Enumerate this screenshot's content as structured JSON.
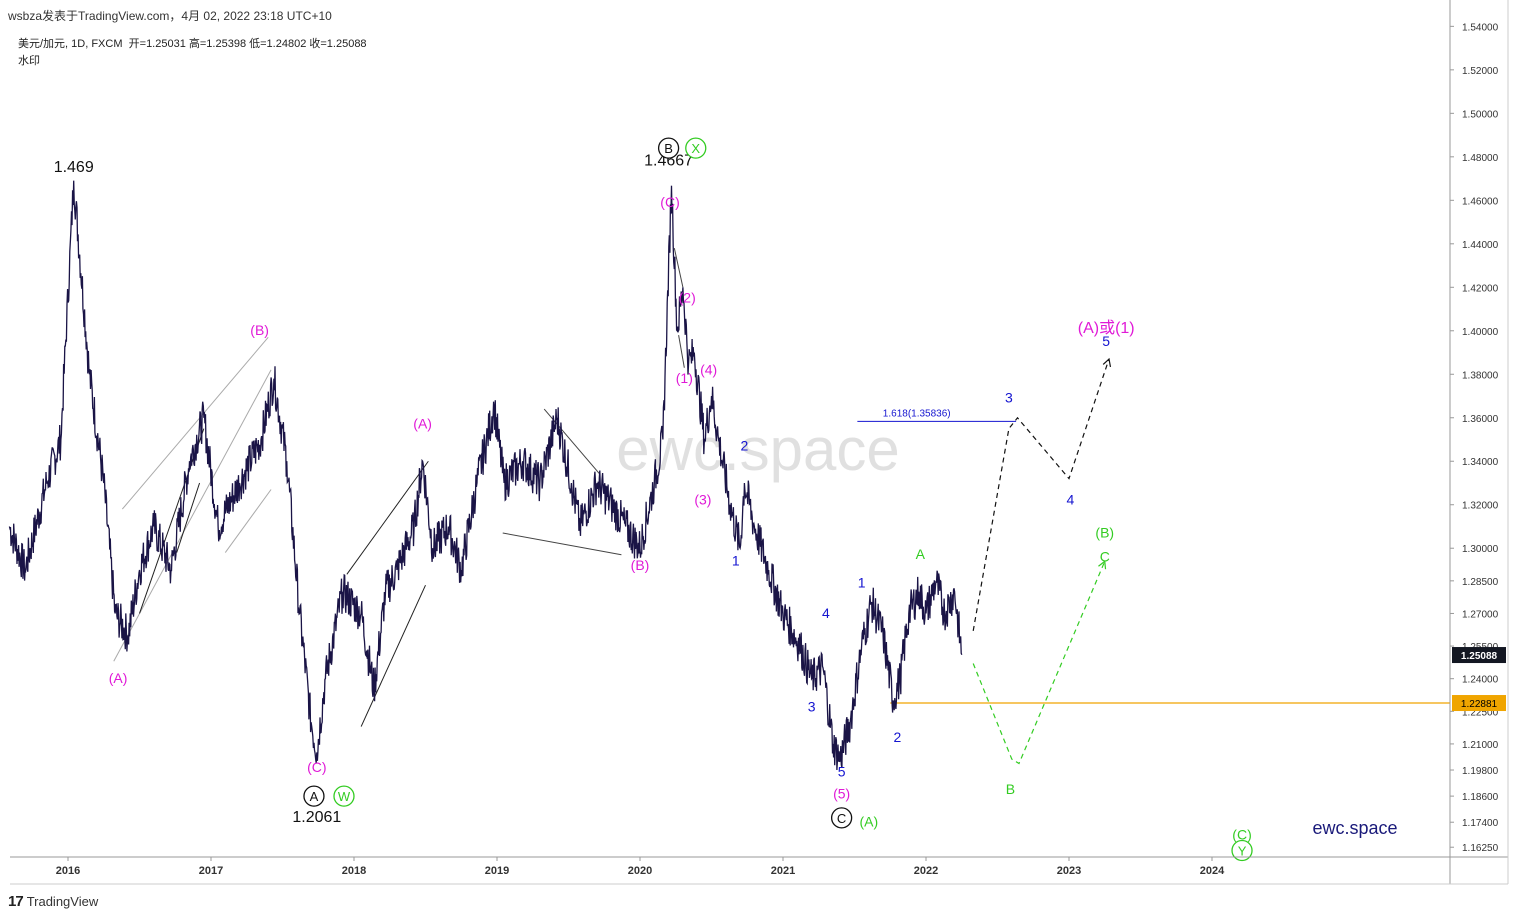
{
  "header": {
    "title": "wsbza发表于TradingView.com，4月 02, 2022 23:18 UTC+10"
  },
  "legend": {
    "symbol": "美元/加元, 1D, FXCM",
    "ohlc": "开=1.25031  高=1.25398  低=1.24802  收=1.25088",
    "line2": "水印"
  },
  "footer": {
    "brand": "TradingView"
  },
  "watermark": "ewc.space",
  "brand_label": "ewc.space",
  "colors": {
    "price": "#1a1446",
    "magenta": "#e01ad7",
    "blue": "#1515d0",
    "green": "#33cc22",
    "black": "#111111",
    "support": "#f0a500",
    "lastprice_bg": "#131722"
  },
  "chart_data": {
    "type": "line",
    "x_ticks": [
      "2016",
      "2017",
      "2018",
      "2019",
      "2020",
      "2021",
      "2022",
      "2023",
      "2024"
    ],
    "y_ticks": [
      "1.54000",
      "1.52000",
      "1.50000",
      "1.48000",
      "1.46000",
      "1.44000",
      "1.42000",
      "1.40000",
      "1.38000",
      "1.36000",
      "1.34000",
      "1.32000",
      "1.30000",
      "1.28500",
      "1.27000",
      "1.25500",
      "1.24000",
      "1.22500",
      "1.21000",
      "1.19800",
      "1.18600",
      "1.17400",
      "1.16250"
    ],
    "ylim": [
      1.158,
      1.542
    ],
    "last_price": "1.25088",
    "support_level": "1.22881",
    "price_anchors": [
      [
        2015.59,
        1.31
      ],
      [
        2015.7,
        1.29
      ],
      [
        2015.85,
        1.33
      ],
      [
        2015.95,
        1.35
      ],
      [
        2016.04,
        1.469
      ],
      [
        2016.15,
        1.38
      ],
      [
        2016.25,
        1.33
      ],
      [
        2016.33,
        1.27
      ],
      [
        2016.42,
        1.26
      ],
      [
        2016.5,
        1.29
      ],
      [
        2016.6,
        1.31
      ],
      [
        2016.72,
        1.29
      ],
      [
        2016.85,
        1.34
      ],
      [
        2016.95,
        1.36
      ],
      [
        2017.05,
        1.31
      ],
      [
        2017.2,
        1.33
      ],
      [
        2017.35,
        1.35
      ],
      [
        2017.44,
        1.378
      ],
      [
        2017.53,
        1.34
      ],
      [
        2017.62,
        1.27
      ],
      [
        2017.7,
        1.22
      ],
      [
        2017.74,
        1.2061
      ],
      [
        2017.8,
        1.24
      ],
      [
        2017.92,
        1.28
      ],
      [
        2018.05,
        1.27
      ],
      [
        2018.14,
        1.235
      ],
      [
        2018.22,
        1.28
      ],
      [
        2018.3,
        1.29
      ],
      [
        2018.42,
        1.31
      ],
      [
        2018.48,
        1.34
      ],
      [
        2018.55,
        1.3
      ],
      [
        2018.66,
        1.31
      ],
      [
        2018.75,
        1.29
      ],
      [
        2018.86,
        1.33
      ],
      [
        2018.98,
        1.365
      ],
      [
        2019.05,
        1.33
      ],
      [
        2019.18,
        1.34
      ],
      [
        2019.3,
        1.33
      ],
      [
        2019.42,
        1.36
      ],
      [
        2019.52,
        1.33
      ],
      [
        2019.58,
        1.31
      ],
      [
        2019.7,
        1.33
      ],
      [
        2019.8,
        1.32
      ],
      [
        2019.9,
        1.31
      ],
      [
        2020.0,
        1.3
      ],
      [
        2020.1,
        1.33
      ],
      [
        2020.16,
        1.35
      ],
      [
        2020.22,
        1.4667
      ],
      [
        2020.26,
        1.4
      ],
      [
        2020.3,
        1.42
      ],
      [
        2020.34,
        1.385
      ],
      [
        2020.38,
        1.39
      ],
      [
        2020.45,
        1.35
      ],
      [
        2020.5,
        1.37
      ],
      [
        2020.55,
        1.35
      ],
      [
        2020.63,
        1.32
      ],
      [
        2020.7,
        1.3
      ],
      [
        2020.73,
        1.33
      ],
      [
        2020.8,
        1.31
      ],
      [
        2020.9,
        1.29
      ],
      [
        2021.0,
        1.27
      ],
      [
        2021.12,
        1.255
      ],
      [
        2021.2,
        1.24
      ],
      [
        2021.28,
        1.245
      ],
      [
        2021.35,
        1.21
      ],
      [
        2021.4,
        1.203
      ],
      [
        2021.47,
        1.22
      ],
      [
        2021.55,
        1.255
      ],
      [
        2021.62,
        1.275
      ],
      [
        2021.7,
        1.26
      ],
      [
        2021.77,
        1.23
      ],
      [
        2021.82,
        1.24
      ],
      [
        2021.88,
        1.27
      ],
      [
        2021.95,
        1.28
      ],
      [
        2022.0,
        1.27
      ],
      [
        2022.07,
        1.285
      ],
      [
        2022.13,
        1.27
      ],
      [
        2022.2,
        1.28
      ],
      [
        2022.25,
        1.251
      ]
    ],
    "projections": [
      {
        "color": "black",
        "points": [
          [
            2022.33,
            1.262
          ],
          [
            2022.58,
            1.355
          ],
          [
            2022.64,
            1.36
          ],
          [
            2023.0,
            1.332
          ],
          [
            2023.28,
            1.387
          ]
        ]
      },
      {
        "color": "green",
        "points": [
          [
            2022.33,
            1.247
          ],
          [
            2022.6,
            1.203
          ],
          [
            2022.65,
            1.201
          ],
          [
            2023.25,
            1.294
          ]
        ]
      }
    ],
    "fib": {
      "label": "1.618(1.35836)",
      "value": 1.35836,
      "x_start": 2021.52,
      "x_end": 2022.63
    },
    "annotations": [
      {
        "text": "1.469",
        "x": 2016.04,
        "y": 1.473,
        "color": "black"
      },
      {
        "text": "(A)",
        "x": 2016.35,
        "y": 1.238,
        "color": "magenta"
      },
      {
        "text": "(B)",
        "x": 2017.34,
        "y": 1.398,
        "color": "magenta"
      },
      {
        "text": "(C)",
        "x": 2017.74,
        "y": 1.197,
        "color": "magenta"
      },
      {
        "text": "1.2061",
        "x": 2017.74,
        "y": 1.174,
        "color": "black"
      },
      {
        "text": "(A)",
        "x": 2018.48,
        "y": 1.355,
        "color": "magenta"
      },
      {
        "text": "(B)",
        "x": 2020.0,
        "y": 1.29,
        "color": "magenta"
      },
      {
        "text": "1.4667",
        "x": 2020.2,
        "y": 1.476,
        "color": "black"
      },
      {
        "text": "(C)",
        "x": 2020.21,
        "y": 1.457,
        "color": "magenta"
      },
      {
        "text": "(2)",
        "x": 2020.33,
        "y": 1.413,
        "color": "magenta"
      },
      {
        "text": "(1)",
        "x": 2020.31,
        "y": 1.376,
        "color": "magenta"
      },
      {
        "text": "(4)",
        "x": 2020.48,
        "y": 1.38,
        "color": "magenta"
      },
      {
        "text": "(3)",
        "x": 2020.44,
        "y": 1.32,
        "color": "magenta"
      },
      {
        "text": "2",
        "x": 2020.73,
        "y": 1.345,
        "color": "blue"
      },
      {
        "text": "1",
        "x": 2020.67,
        "y": 1.292,
        "color": "blue"
      },
      {
        "text": "4",
        "x": 2021.3,
        "y": 1.268,
        "color": "blue"
      },
      {
        "text": "3",
        "x": 2021.2,
        "y": 1.225,
        "color": "blue"
      },
      {
        "text": "5",
        "x": 2021.41,
        "y": 1.195,
        "color": "blue"
      },
      {
        "text": "(5)",
        "x": 2021.41,
        "y": 1.185,
        "color": "magenta"
      },
      {
        "text": "(A)",
        "x": 2021.6,
        "y": 1.172,
        "color": "green"
      },
      {
        "text": "1",
        "x": 2021.55,
        "y": 1.282,
        "color": "blue"
      },
      {
        "text": "2",
        "x": 2021.8,
        "y": 1.211,
        "color": "blue"
      },
      {
        "text": "A",
        "x": 2021.96,
        "y": 1.295,
        "color": "green"
      },
      {
        "text": "3",
        "x": 2022.58,
        "y": 1.367,
        "color": "blue"
      },
      {
        "text": "4",
        "x": 2023.01,
        "y": 1.32,
        "color": "blue"
      },
      {
        "text": "5",
        "x": 2023.26,
        "y": 1.393,
        "color": "blue"
      },
      {
        "text": "(A)或(1)",
        "x": 2023.26,
        "y": 1.399,
        "color": "magenta"
      },
      {
        "text": "B",
        "x": 2022.59,
        "y": 1.187,
        "color": "green"
      },
      {
        "text": "(B)",
        "x": 2023.25,
        "y": 1.305,
        "color": "green"
      },
      {
        "text": "C",
        "x": 2023.25,
        "y": 1.294,
        "color": "green"
      },
      {
        "text": "(C)",
        "x": 2024.21,
        "y": 1.166,
        "color": "green"
      }
    ],
    "circled": [
      {
        "text": "A",
        "x": 2017.72,
        "y": 1.186,
        "color": "black"
      },
      {
        "text": "W",
        "x": 2017.93,
        "y": 1.186,
        "color": "green"
      },
      {
        "text": "B",
        "x": 2020.2,
        "y": 1.484,
        "color": "black"
      },
      {
        "text": "X",
        "x": 2020.39,
        "y": 1.484,
        "color": "green"
      },
      {
        "text": "C",
        "x": 2021.41,
        "y": 1.176,
        "color": "black"
      },
      {
        "text": "Y",
        "x": 2024.21,
        "y": 1.161,
        "color": "green"
      }
    ]
  }
}
